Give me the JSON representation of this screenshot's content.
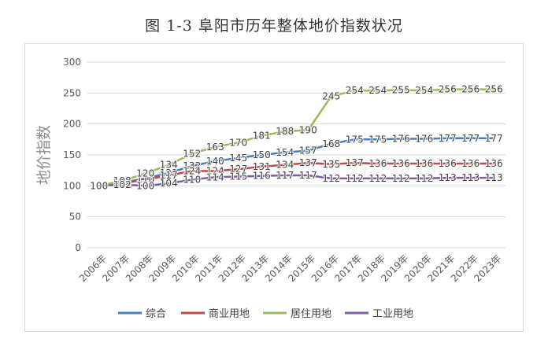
{
  "title": "图 1-3   阜阳市历年整体地价指数状况",
  "chart_data": {
    "type": "line",
    "ylabel": "地价指数",
    "ylim": [
      0,
      300
    ],
    "yticks": [
      0,
      50,
      100,
      150,
      200,
      250,
      300
    ],
    "grid": true,
    "legend_position": "bottom",
    "categories": [
      "2006年",
      "2007年",
      "2008年",
      "2009年",
      "2010年",
      "2011年",
      "2012年",
      "2013年",
      "2014年",
      "2015年",
      "2016年",
      "2017年",
      "2018年",
      "2019年",
      "2020年",
      "2021年",
      "2022年",
      "2023年"
    ],
    "series": [
      {
        "name": "综合",
        "color": "#4a7ebb",
        "values": [
          100,
          105,
          112,
          121,
          132,
          140,
          145,
          150,
          154,
          157,
          168,
          175,
          175,
          176,
          176,
          177,
          177,
          177
        ],
        "labels": [
          "100",
          "105",
          "112",
          "121",
          "132",
          "140",
          "145",
          "150",
          "154",
          "157",
          "168",
          "175",
          "175",
          "176",
          "176",
          "177",
          "177",
          "177"
        ]
      },
      {
        "name": "商业用地",
        "color": "#be4b48",
        "values": [
          100,
          104,
          110,
          117,
          124,
          124,
          127,
          131,
          134,
          137,
          135,
          137,
          136,
          136,
          136,
          136,
          136,
          136
        ],
        "labels": [
          "100",
          "104",
          "110",
          "117",
          "124",
          "124",
          "127",
          "131",
          "134",
          "137",
          "135",
          "137",
          "136",
          "136",
          "136",
          "136",
          "136",
          "136"
        ]
      },
      {
        "name": "居住用地",
        "color": "#9bbb59",
        "values": [
          100,
          108,
          120,
          134,
          152,
          163,
          170,
          181,
          188,
          190,
          245,
          254,
          254,
          255,
          254,
          256,
          256,
          256
        ],
        "labels": [
          "100",
          "108",
          "120",
          "134",
          "152",
          "163",
          "170",
          "181",
          "188",
          "190",
          "245",
          "254",
          "254",
          "255",
          "254",
          "256",
          "256",
          "256"
        ]
      },
      {
        "name": "工业用地",
        "color": "#7d5fa0",
        "values": [
          100,
          102,
          100,
          104,
          110,
          114,
          115,
          116,
          117,
          117,
          112,
          112,
          112,
          112,
          112,
          113,
          113,
          113
        ],
        "labels": [
          "100",
          "102",
          "100",
          "104",
          "110",
          "114",
          "115",
          "116",
          "117",
          "117",
          "112",
          "112",
          "112",
          "112",
          "112",
          "113",
          "113",
          "113"
        ]
      }
    ]
  }
}
